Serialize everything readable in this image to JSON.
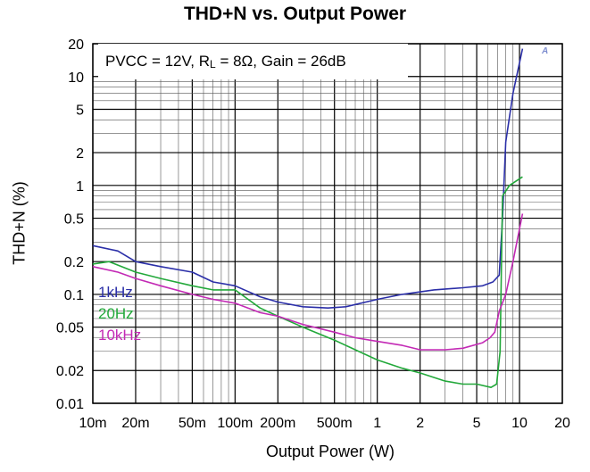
{
  "chart_data": {
    "type": "line",
    "title": "THD+N vs. Output Power",
    "xlabel": "Output Power (W)",
    "ylabel": "THD+N (%)",
    "xscale": "log",
    "yscale": "log",
    "xlim": [
      0.01,
      20
    ],
    "ylim": [
      0.01,
      20
    ],
    "x_ticks": [
      {
        "v": 0.01,
        "label": "10m"
      },
      {
        "v": 0.02,
        "label": "20m"
      },
      {
        "v": 0.05,
        "label": "50m"
      },
      {
        "v": 0.1,
        "label": "100m"
      },
      {
        "v": 0.2,
        "label": "200m"
      },
      {
        "v": 0.5,
        "label": "500m"
      },
      {
        "v": 1,
        "label": "1"
      },
      {
        "v": 2,
        "label": "2"
      },
      {
        "v": 5,
        "label": "5"
      },
      {
        "v": 10,
        "label": "10"
      },
      {
        "v": 20,
        "label": "20"
      }
    ],
    "y_ticks": [
      {
        "v": 0.01,
        "label": "0.01"
      },
      {
        "v": 0.02,
        "label": "0.02"
      },
      {
        "v": 0.05,
        "label": "0.05"
      },
      {
        "v": 0.1,
        "label": "0.1"
      },
      {
        "v": 0.2,
        "label": "0.2"
      },
      {
        "v": 0.5,
        "label": "0.5"
      },
      {
        "v": 1,
        "label": "1"
      },
      {
        "v": 2,
        "label": "2"
      },
      {
        "v": 5,
        "label": "5"
      },
      {
        "v": 10,
        "label": "10"
      },
      {
        "v": 20,
        "label": "20"
      }
    ],
    "grid": true,
    "annotation": {
      "pre": "PVCC = 12V, R",
      "sub": "L",
      "post": " = 8Ω, Gain = 26dB"
    },
    "legend_position": "left",
    "series": [
      {
        "name": "1kHz",
        "color": "#2b2fa8",
        "x": [
          0.01,
          0.015,
          0.02,
          0.03,
          0.05,
          0.07,
          0.1,
          0.15,
          0.2,
          0.3,
          0.45,
          0.6,
          1,
          1.5,
          2.5,
          4,
          5.5,
          6.5,
          7.2,
          7.6,
          8,
          9,
          10.5
        ],
        "y": [
          0.28,
          0.25,
          0.2,
          0.18,
          0.16,
          0.13,
          0.12,
          0.095,
          0.085,
          0.077,
          0.075,
          0.077,
          0.09,
          0.1,
          0.11,
          0.115,
          0.12,
          0.13,
          0.15,
          0.5,
          2.5,
          7,
          18
        ]
      },
      {
        "name": "20Hz",
        "color": "#22a83a",
        "x": [
          0.01,
          0.013,
          0.02,
          0.03,
          0.05,
          0.07,
          0.1,
          0.15,
          0.2,
          0.3,
          0.5,
          0.7,
          1,
          1.5,
          2,
          3,
          4,
          5,
          6.3,
          6.9,
          7.3,
          7.6,
          8.5,
          10.5
        ],
        "y": [
          0.19,
          0.2,
          0.16,
          0.14,
          0.12,
          0.11,
          0.11,
          0.075,
          0.063,
          0.05,
          0.038,
          0.031,
          0.025,
          0.021,
          0.019,
          0.016,
          0.015,
          0.015,
          0.014,
          0.015,
          0.03,
          0.8,
          1.0,
          1.2
        ]
      },
      {
        "name": "10kHz",
        "color": "#c32ab5",
        "x": [
          0.01,
          0.015,
          0.02,
          0.03,
          0.05,
          0.07,
          0.1,
          0.15,
          0.2,
          0.3,
          0.5,
          0.7,
          1,
          1.5,
          2,
          3,
          4,
          5.5,
          6.2,
          6.7,
          7.2,
          8,
          9,
          10.5
        ],
        "y": [
          0.18,
          0.16,
          0.14,
          0.12,
          0.1,
          0.09,
          0.083,
          0.068,
          0.063,
          0.053,
          0.045,
          0.04,
          0.037,
          0.034,
          0.031,
          0.031,
          0.032,
          0.036,
          0.04,
          0.045,
          0.07,
          0.1,
          0.2,
          0.55
        ]
      }
    ]
  }
}
